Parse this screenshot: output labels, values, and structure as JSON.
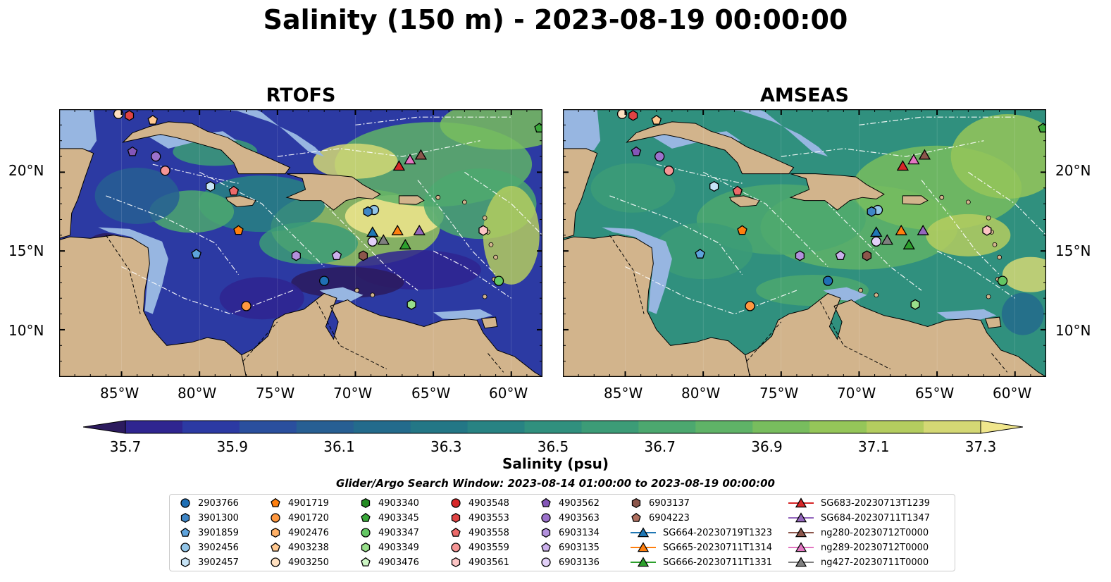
{
  "title": "Salinity (150 m) - 2023-08-19 00:00:00",
  "panels": [
    {
      "title": "RTOFS"
    },
    {
      "title": "AMSEAS"
    }
  ],
  "map_axes": {
    "lon_ticks": [
      "85°W",
      "80°W",
      "75°W",
      "70°W",
      "65°W",
      "60°W"
    ],
    "lat_ticks": [
      "20°N",
      "15°N",
      "10°N"
    ],
    "lon_range": [
      -89,
      -58
    ],
    "lat_range": [
      7,
      24
    ]
  },
  "colors": {
    "land": "#d2b48c",
    "shelf": "#97b6e1",
    "graticule": "#ffffff",
    "border": "#000000"
  },
  "colorbar": {
    "label": "Salinity (psu)",
    "ticks": [
      "35.7",
      "35.9",
      "36.1",
      "36.3",
      "36.5",
      "36.7",
      "36.9",
      "37.1",
      "37.3"
    ],
    "range": [
      35.7,
      37.3
    ],
    "extend": "both",
    "colors": [
      "#2c1b5e",
      "#2f2590",
      "#2c3aa3",
      "#2a4f9e",
      "#275f93",
      "#236b8c",
      "#237786",
      "#288383",
      "#30907e",
      "#3c9c77",
      "#4ca86f",
      "#5fb367",
      "#78bd5e",
      "#95c659",
      "#b4cd5f",
      "#d4d874",
      "#f0e68c"
    ]
  },
  "search_window": "Glider/Argo Search Window: 2023-08-14 01:00:00 to 2023-08-19 00:00:00",
  "legend": [
    {
      "label": "2903766",
      "shape": "circle",
      "color": "#1f6fb4"
    },
    {
      "label": "3901300",
      "shape": "hexagon",
      "color": "#3f86c6"
    },
    {
      "label": "3901859",
      "shape": "pentagon",
      "color": "#5ea3dc"
    },
    {
      "label": "3902456",
      "shape": "circle",
      "color": "#92c5e8"
    },
    {
      "label": "3902457",
      "shape": "hexagon",
      "color": "#c6e3f6"
    },
    {
      "label": "4901719",
      "shape": "pentagon",
      "color": "#ff7f0e"
    },
    {
      "label": "4901720",
      "shape": "circle",
      "color": "#ff9840"
    },
    {
      "label": "4902476",
      "shape": "hexagon",
      "color": "#ffb066"
    },
    {
      "label": "4903238",
      "shape": "pentagon",
      "color": "#ffc890"
    },
    {
      "label": "4903250",
      "shape": "circle",
      "color": "#ffe0c0"
    },
    {
      "label": "4903340",
      "shape": "hexagon",
      "color": "#238b22"
    },
    {
      "label": "4903345",
      "shape": "pentagon",
      "color": "#3aa83a"
    },
    {
      "label": "4903347",
      "shape": "circle",
      "color": "#63c663"
    },
    {
      "label": "4903349",
      "shape": "hexagon",
      "color": "#98df8a"
    },
    {
      "label": "4903476",
      "shape": "pentagon",
      "color": "#ccf5c4"
    },
    {
      "label": "4903548",
      "shape": "circle",
      "color": "#d62728"
    },
    {
      "label": "4903553",
      "shape": "hexagon",
      "color": "#e04444"
    },
    {
      "label": "4903558",
      "shape": "pentagon",
      "color": "#ec6a6a"
    },
    {
      "label": "4903559",
      "shape": "circle",
      "color": "#f59595"
    },
    {
      "label": "4903561",
      "shape": "hexagon",
      "color": "#fcc4c4"
    },
    {
      "label": "4903562",
      "shape": "pentagon",
      "color": "#8456b8"
    },
    {
      "label": "4903563",
      "shape": "circle",
      "color": "#9c72cc"
    },
    {
      "label": "6903134",
      "shape": "hexagon",
      "color": "#b290dc"
    },
    {
      "label": "6903135",
      "shape": "pentagon",
      "color": "#cbb0ec"
    },
    {
      "label": "6903136",
      "shape": "circle",
      "color": "#e2d0f8"
    },
    {
      "label": "6903137",
      "shape": "hexagon",
      "color": "#8c564b"
    },
    {
      "label": "6904223",
      "shape": "pentagon",
      "color": "#b07060"
    },
    {
      "label": "SG664-20230719T1323",
      "shape": "triangle",
      "color": "#1f77b4"
    },
    {
      "label": "SG665-20230711T1314",
      "shape": "triangle",
      "color": "#ff7f0e"
    },
    {
      "label": "SG666-20230711T1331",
      "shape": "triangle",
      "color": "#2ca02c"
    },
    {
      "label": "SG683-20230713T1239",
      "shape": "triangle",
      "color": "#d62728"
    },
    {
      "label": "SG684-20230711T1347",
      "shape": "triangle",
      "color": "#9467bd"
    },
    {
      "label": "ng280-20230712T0000",
      "shape": "triangle",
      "color": "#8c564b"
    },
    {
      "label": "ng289-20230712T0000",
      "shape": "triangle",
      "color": "#e377c2"
    },
    {
      "label": "ng427-20230711T0000",
      "shape": "triangle",
      "color": "#7f7f7f"
    }
  ],
  "markers": [
    {
      "id": "4903250",
      "lon": -85.2,
      "lat": 23.7
    },
    {
      "id": "4903553",
      "lon": -84.5,
      "lat": 23.6
    },
    {
      "id": "4903238",
      "lon": -83.0,
      "lat": 23.3
    },
    {
      "id": "4903562",
      "lon": -84.3,
      "lat": 21.3
    },
    {
      "id": "4903563",
      "lon": -82.8,
      "lat": 21.0
    },
    {
      "id": "4903559",
      "lon": -82.2,
      "lat": 20.1
    },
    {
      "id": "3902457",
      "lon": -79.3,
      "lat": 19.1
    },
    {
      "id": "4903558",
      "lon": -77.8,
      "lat": 18.8
    },
    {
      "id": "4901719",
      "lon": -77.5,
      "lat": 16.3
    },
    {
      "id": "3901859",
      "lon": -80.2,
      "lat": 14.8
    },
    {
      "id": "6903134",
      "lon": -73.8,
      "lat": 14.7
    },
    {
      "id": "6903135",
      "lon": -71.2,
      "lat": 14.7
    },
    {
      "id": "2903766",
      "lon": -72.0,
      "lat": 13.1
    },
    {
      "id": "4901720",
      "lon": -77.0,
      "lat": 11.5
    },
    {
      "id": "3902456",
      "lon": -68.8,
      "lat": 17.6
    },
    {
      "id": "3901300",
      "lon": -69.2,
      "lat": 17.5
    },
    {
      "id": "6903136",
      "lon": -68.9,
      "lat": 15.6
    },
    {
      "id": "6903137",
      "lon": -69.5,
      "lat": 14.7
    },
    {
      "id": "4903349",
      "lon": -66.4,
      "lat": 11.6
    },
    {
      "id": "4903347",
      "lon": -60.8,
      "lat": 13.1
    },
    {
      "id": "4903561",
      "lon": -61.8,
      "lat": 16.3
    },
    {
      "id": "4903345",
      "lon": -58.2,
      "lat": 22.8
    },
    {
      "id": "SG664-20230719T1323",
      "lon": -68.9,
      "lat": 16.2
    },
    {
      "id": "SG665-20230711T1314",
      "lon": -67.3,
      "lat": 16.3
    },
    {
      "id": "SG666-20230711T1331",
      "lon": -66.8,
      "lat": 15.4
    },
    {
      "id": "SG683-20230713T1239",
      "lon": -67.2,
      "lat": 20.4
    },
    {
      "id": "SG684-20230711T1347",
      "lon": -65.9,
      "lat": 16.3
    },
    {
      "id": "ng280-20230712T0000",
      "lon": -65.8,
      "lat": 21.1
    },
    {
      "id": "ng289-20230712T0000",
      "lon": -66.5,
      "lat": 20.8
    },
    {
      "id": "ng427-20230711T0000",
      "lon": -68.2,
      "lat": 15.7
    }
  ]
}
